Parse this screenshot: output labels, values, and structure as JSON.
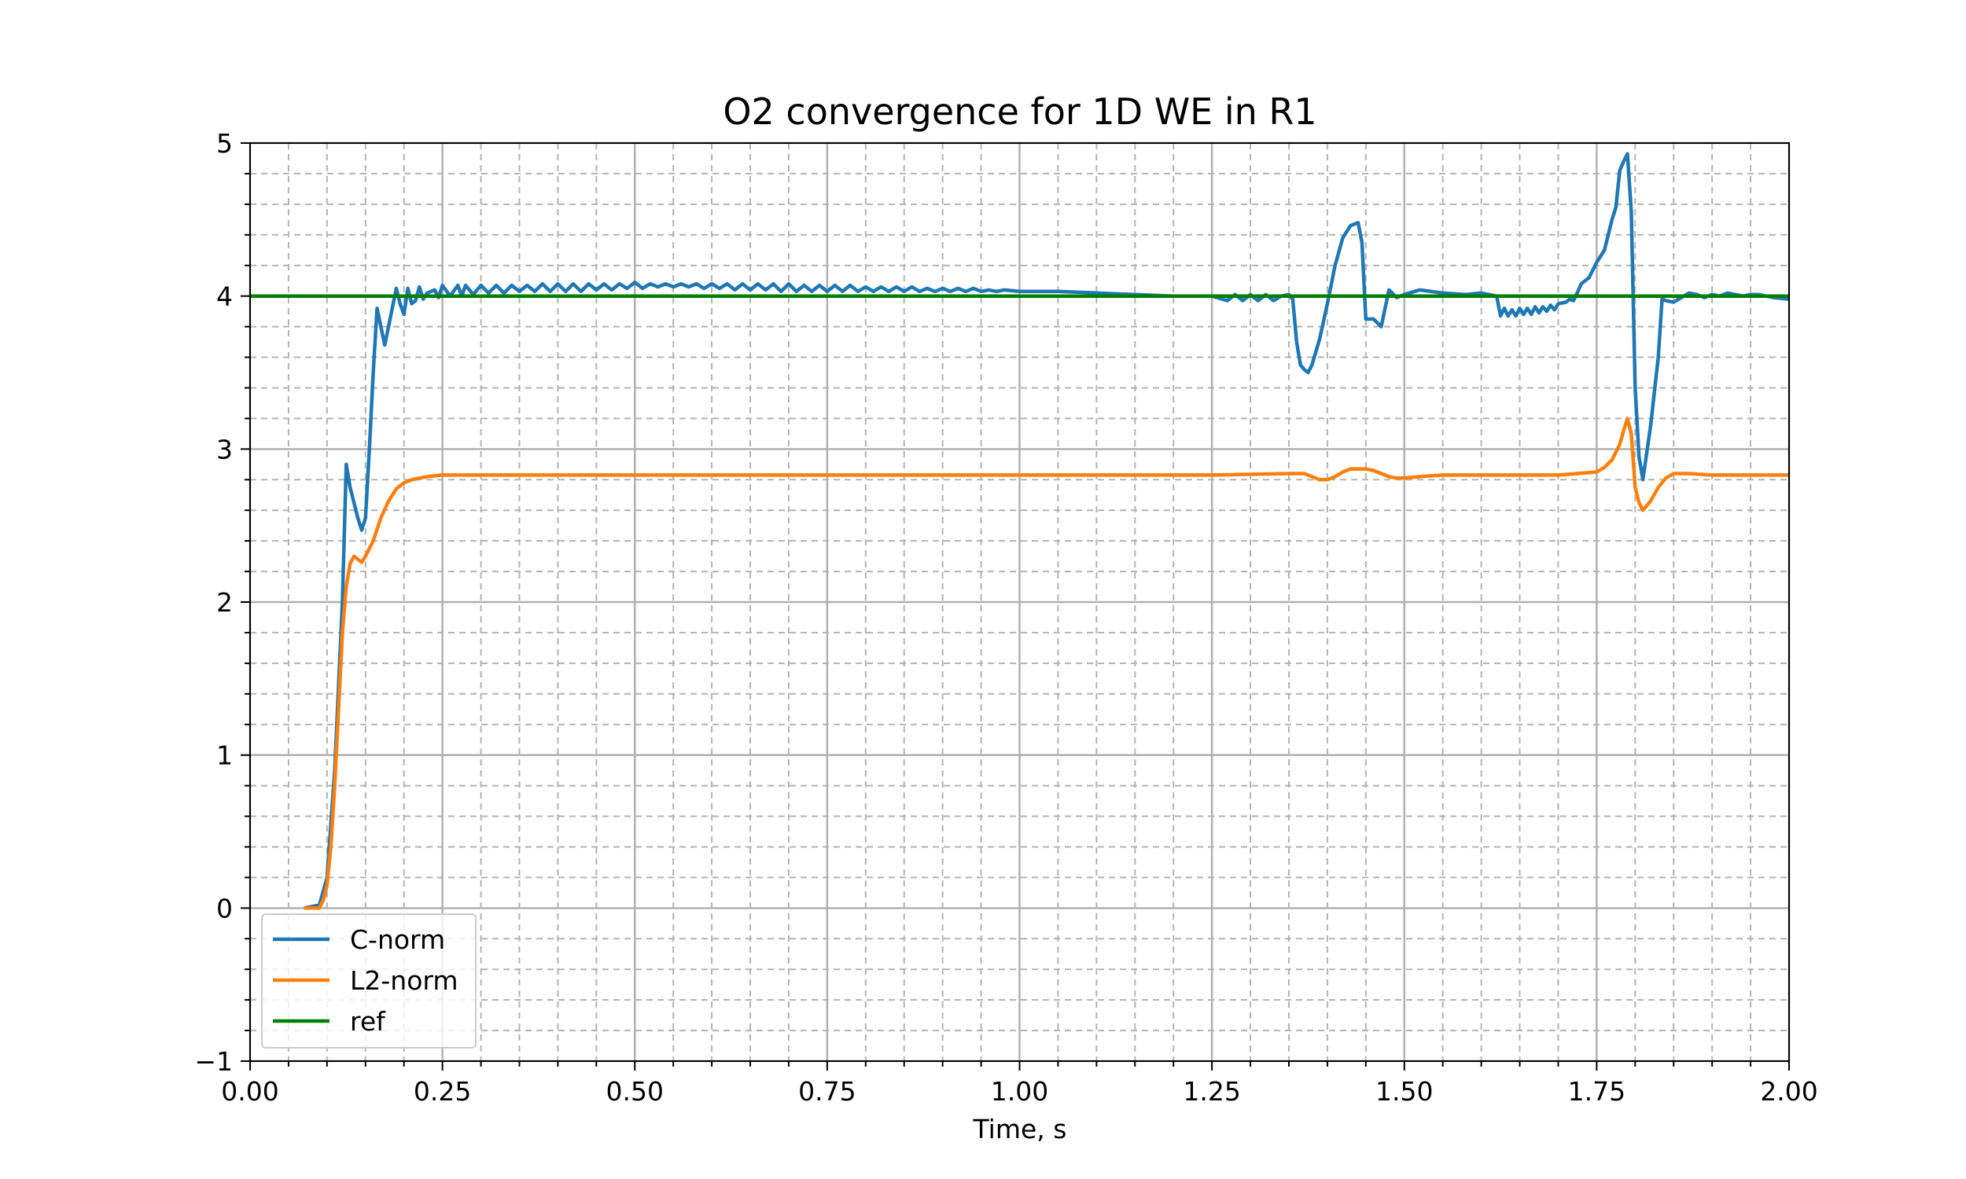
{
  "chart_data": {
    "type": "line",
    "title": "O2 convergence for 1D WE in R1",
    "xlabel": "Time, s",
    "ylabel": "",
    "xlim": [
      0.0,
      2.0
    ],
    "ylim": [
      -1,
      5
    ],
    "x_ticks": [
      0.0,
      0.25,
      0.5,
      0.75,
      1.0,
      1.25,
      1.5,
      1.75,
      2.0
    ],
    "x_tick_labels": [
      "0.00",
      "0.25",
      "0.50",
      "0.75",
      "1.00",
      "1.25",
      "1.50",
      "1.75",
      "2.00"
    ],
    "y_ticks": [
      -1,
      0,
      1,
      2,
      3,
      4,
      5
    ],
    "y_tick_labels": [
      "−1",
      "0",
      "1",
      "2",
      "3",
      "4",
      "5"
    ],
    "grid": true,
    "minor_grid": true,
    "legend_position": "lower-left",
    "series": [
      {
        "name": "C-norm",
        "color": "#1f77b4",
        "points": [
          [
            0.07,
            0.0
          ],
          [
            0.09,
            0.02
          ],
          [
            0.1,
            0.2
          ],
          [
            0.11,
            0.9
          ],
          [
            0.12,
            2.0
          ],
          [
            0.125,
            2.9
          ],
          [
            0.13,
            2.75
          ],
          [
            0.14,
            2.55
          ],
          [
            0.145,
            2.47
          ],
          [
            0.15,
            2.55
          ],
          [
            0.155,
            3.0
          ],
          [
            0.16,
            3.5
          ],
          [
            0.165,
            3.92
          ],
          [
            0.17,
            3.8
          ],
          [
            0.175,
            3.68
          ],
          [
            0.18,
            3.8
          ],
          [
            0.19,
            4.05
          ],
          [
            0.195,
            3.95
          ],
          [
            0.2,
            3.88
          ],
          [
            0.205,
            4.05
          ],
          [
            0.21,
            3.95
          ],
          [
            0.215,
            3.97
          ],
          [
            0.22,
            4.06
          ],
          [
            0.225,
            3.98
          ],
          [
            0.23,
            4.02
          ],
          [
            0.24,
            4.04
          ],
          [
            0.245,
            3.99
          ],
          [
            0.25,
            4.07
          ],
          [
            0.26,
            4.0
          ],
          [
            0.27,
            4.07
          ],
          [
            0.275,
            4.0
          ],
          [
            0.28,
            4.07
          ],
          [
            0.29,
            4.01
          ],
          [
            0.3,
            4.07
          ],
          [
            0.31,
            4.02
          ],
          [
            0.32,
            4.07
          ],
          [
            0.33,
            4.02
          ],
          [
            0.34,
            4.07
          ],
          [
            0.35,
            4.03
          ],
          [
            0.36,
            4.07
          ],
          [
            0.37,
            4.03
          ],
          [
            0.38,
            4.08
          ],
          [
            0.39,
            4.03
          ],
          [
            0.4,
            4.08
          ],
          [
            0.41,
            4.03
          ],
          [
            0.42,
            4.08
          ],
          [
            0.43,
            4.03
          ],
          [
            0.44,
            4.08
          ],
          [
            0.45,
            4.04
          ],
          [
            0.46,
            4.08
          ],
          [
            0.47,
            4.04
          ],
          [
            0.48,
            4.08
          ],
          [
            0.49,
            4.05
          ],
          [
            0.5,
            4.09
          ],
          [
            0.51,
            4.05
          ],
          [
            0.52,
            4.08
          ],
          [
            0.53,
            4.06
          ],
          [
            0.54,
            4.08
          ],
          [
            0.55,
            4.06
          ],
          [
            0.56,
            4.08
          ],
          [
            0.57,
            4.06
          ],
          [
            0.58,
            4.08
          ],
          [
            0.59,
            4.05
          ],
          [
            0.6,
            4.08
          ],
          [
            0.61,
            4.05
          ],
          [
            0.62,
            4.08
          ],
          [
            0.63,
            4.04
          ],
          [
            0.64,
            4.08
          ],
          [
            0.65,
            4.04
          ],
          [
            0.66,
            4.08
          ],
          [
            0.67,
            4.04
          ],
          [
            0.68,
            4.08
          ],
          [
            0.69,
            4.03
          ],
          [
            0.7,
            4.08
          ],
          [
            0.71,
            4.03
          ],
          [
            0.72,
            4.07
          ],
          [
            0.73,
            4.03
          ],
          [
            0.74,
            4.07
          ],
          [
            0.75,
            4.03
          ],
          [
            0.76,
            4.07
          ],
          [
            0.77,
            4.03
          ],
          [
            0.78,
            4.07
          ],
          [
            0.79,
            4.03
          ],
          [
            0.8,
            4.06
          ],
          [
            0.81,
            4.03
          ],
          [
            0.82,
            4.06
          ],
          [
            0.83,
            4.03
          ],
          [
            0.84,
            4.06
          ],
          [
            0.85,
            4.03
          ],
          [
            0.86,
            4.06
          ],
          [
            0.87,
            4.03
          ],
          [
            0.88,
            4.05
          ],
          [
            0.89,
            4.03
          ],
          [
            0.9,
            4.05
          ],
          [
            0.91,
            4.03
          ],
          [
            0.92,
            4.05
          ],
          [
            0.93,
            4.03
          ],
          [
            0.94,
            4.05
          ],
          [
            0.95,
            4.03
          ],
          [
            0.96,
            4.04
          ],
          [
            0.97,
            4.03
          ],
          [
            0.98,
            4.04
          ],
          [
            1.0,
            4.03
          ],
          [
            1.05,
            4.03
          ],
          [
            1.1,
            4.02
          ],
          [
            1.15,
            4.01
          ],
          [
            1.2,
            4.0
          ],
          [
            1.25,
            4.0
          ],
          [
            1.27,
            3.97
          ],
          [
            1.28,
            4.01
          ],
          [
            1.29,
            3.97
          ],
          [
            1.3,
            4.01
          ],
          [
            1.31,
            3.97
          ],
          [
            1.32,
            4.01
          ],
          [
            1.33,
            3.97
          ],
          [
            1.34,
            4.0
          ],
          [
            1.35,
            4.01
          ],
          [
            1.355,
            3.98
          ],
          [
            1.36,
            3.7
          ],
          [
            1.365,
            3.55
          ],
          [
            1.37,
            3.52
          ],
          [
            1.375,
            3.5
          ],
          [
            1.38,
            3.55
          ],
          [
            1.39,
            3.72
          ],
          [
            1.4,
            3.95
          ],
          [
            1.41,
            4.2
          ],
          [
            1.42,
            4.38
          ],
          [
            1.43,
            4.46
          ],
          [
            1.44,
            4.48
          ],
          [
            1.445,
            4.35
          ],
          [
            1.45,
            3.85
          ],
          [
            1.46,
            3.85
          ],
          [
            1.47,
            3.8
          ],
          [
            1.48,
            4.04
          ],
          [
            1.49,
            3.99
          ],
          [
            1.5,
            4.01
          ],
          [
            1.52,
            4.04
          ],
          [
            1.55,
            4.02
          ],
          [
            1.58,
            4.01
          ],
          [
            1.6,
            4.02
          ],
          [
            1.62,
            4.0
          ],
          [
            1.625,
            3.87
          ],
          [
            1.63,
            3.92
          ],
          [
            1.635,
            3.87
          ],
          [
            1.64,
            3.91
          ],
          [
            1.645,
            3.87
          ],
          [
            1.65,
            3.92
          ],
          [
            1.655,
            3.88
          ],
          [
            1.66,
            3.92
          ],
          [
            1.665,
            3.88
          ],
          [
            1.67,
            3.93
          ],
          [
            1.675,
            3.89
          ],
          [
            1.68,
            3.93
          ],
          [
            1.685,
            3.9
          ],
          [
            1.69,
            3.94
          ],
          [
            1.695,
            3.91
          ],
          [
            1.7,
            3.95
          ],
          [
            1.71,
            3.96
          ],
          [
            1.715,
            3.98
          ],
          [
            1.72,
            3.97
          ],
          [
            1.73,
            4.08
          ],
          [
            1.74,
            4.12
          ],
          [
            1.75,
            4.22
          ],
          [
            1.76,
            4.3
          ],
          [
            1.77,
            4.5
          ],
          [
            1.775,
            4.58
          ],
          [
            1.78,
            4.82
          ],
          [
            1.785,
            4.88
          ],
          [
            1.79,
            4.93
          ],
          [
            1.795,
            4.55
          ],
          [
            1.8,
            3.4
          ],
          [
            1.805,
            2.95
          ],
          [
            1.81,
            2.8
          ],
          [
            1.82,
            3.15
          ],
          [
            1.83,
            3.6
          ],
          [
            1.835,
            3.98
          ],
          [
            1.84,
            3.97
          ],
          [
            1.85,
            3.96
          ],
          [
            1.86,
            3.99
          ],
          [
            1.87,
            4.02
          ],
          [
            1.88,
            4.01
          ],
          [
            1.89,
            3.99
          ],
          [
            1.9,
            4.01
          ],
          [
            1.91,
            4.0
          ],
          [
            1.92,
            4.02
          ],
          [
            1.93,
            4.01
          ],
          [
            1.94,
            4.0
          ],
          [
            1.95,
            4.01
          ],
          [
            1.96,
            4.01
          ],
          [
            1.97,
            4.0
          ],
          [
            1.98,
            3.99
          ],
          [
            2.0,
            3.98
          ]
        ]
      },
      {
        "name": "L2-norm",
        "color": "#ff7f0e",
        "points": [
          [
            0.07,
            0.0
          ],
          [
            0.08,
            0.0
          ],
          [
            0.09,
            0.0
          ],
          [
            0.095,
            0.05
          ],
          [
            0.1,
            0.15
          ],
          [
            0.105,
            0.4
          ],
          [
            0.11,
            0.8
          ],
          [
            0.115,
            1.3
          ],
          [
            0.12,
            1.8
          ],
          [
            0.125,
            2.1
          ],
          [
            0.13,
            2.25
          ],
          [
            0.135,
            2.3
          ],
          [
            0.14,
            2.28
          ],
          [
            0.145,
            2.26
          ],
          [
            0.15,
            2.3
          ],
          [
            0.16,
            2.4
          ],
          [
            0.17,
            2.55
          ],
          [
            0.18,
            2.66
          ],
          [
            0.19,
            2.74
          ],
          [
            0.2,
            2.78
          ],
          [
            0.21,
            2.8
          ],
          [
            0.22,
            2.81
          ],
          [
            0.23,
            2.82
          ],
          [
            0.25,
            2.83
          ],
          [
            0.3,
            2.83
          ],
          [
            0.5,
            2.83
          ],
          [
            0.75,
            2.83
          ],
          [
            1.0,
            2.83
          ],
          [
            1.25,
            2.83
          ],
          [
            1.35,
            2.84
          ],
          [
            1.37,
            2.84
          ],
          [
            1.38,
            2.82
          ],
          [
            1.39,
            2.8
          ],
          [
            1.4,
            2.8
          ],
          [
            1.41,
            2.82
          ],
          [
            1.42,
            2.85
          ],
          [
            1.43,
            2.87
          ],
          [
            1.45,
            2.87
          ],
          [
            1.46,
            2.86
          ],
          [
            1.47,
            2.84
          ],
          [
            1.48,
            2.82
          ],
          [
            1.49,
            2.81
          ],
          [
            1.5,
            2.81
          ],
          [
            1.52,
            2.82
          ],
          [
            1.55,
            2.83
          ],
          [
            1.6,
            2.83
          ],
          [
            1.7,
            2.83
          ],
          [
            1.75,
            2.85
          ],
          [
            1.76,
            2.88
          ],
          [
            1.77,
            2.93
          ],
          [
            1.78,
            3.03
          ],
          [
            1.785,
            3.12
          ],
          [
            1.79,
            3.2
          ],
          [
            1.795,
            3.1
          ],
          [
            1.8,
            2.75
          ],
          [
            1.805,
            2.65
          ],
          [
            1.81,
            2.6
          ],
          [
            1.82,
            2.66
          ],
          [
            1.83,
            2.75
          ],
          [
            1.84,
            2.81
          ],
          [
            1.85,
            2.84
          ],
          [
            1.87,
            2.84
          ],
          [
            1.9,
            2.83
          ],
          [
            1.95,
            2.83
          ],
          [
            2.0,
            2.83
          ]
        ]
      },
      {
        "name": "ref",
        "color": "#008000",
        "points": [
          [
            0.0,
            4.0
          ],
          [
            2.0,
            4.0
          ]
        ]
      }
    ]
  }
}
